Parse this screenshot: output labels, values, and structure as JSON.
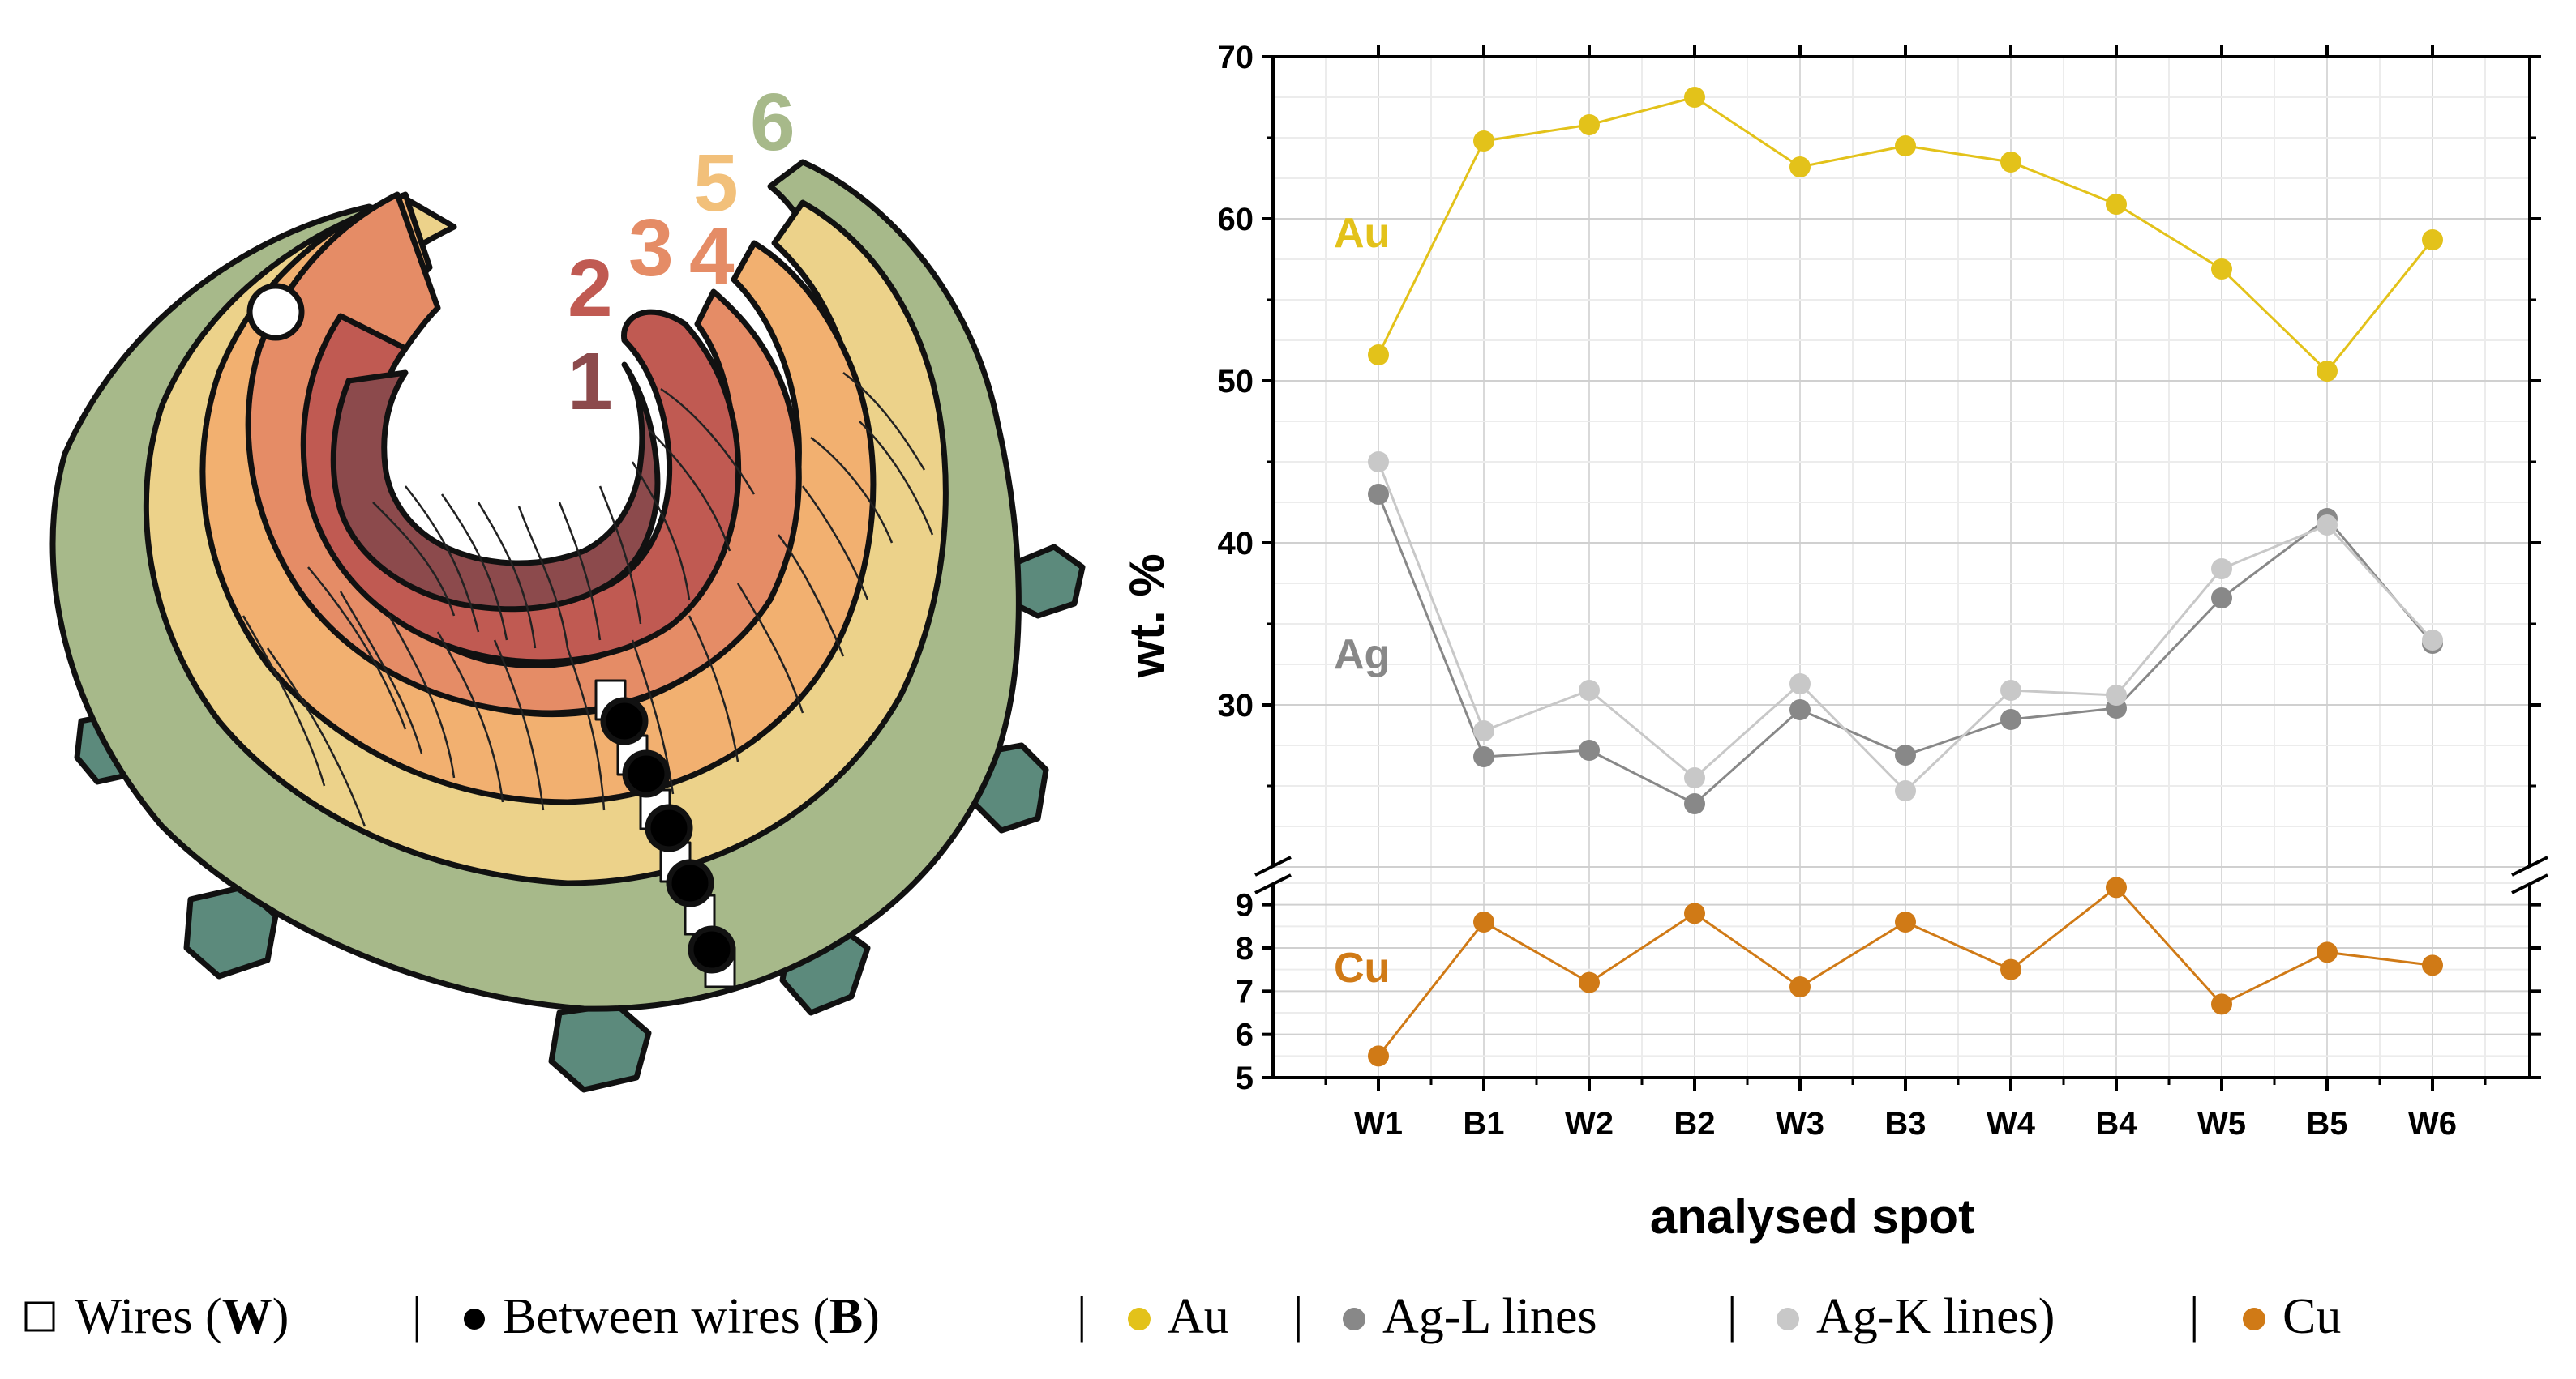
{
  "diagram": {
    "layer_labels": [
      "1",
      "2",
      "3",
      "4",
      "5",
      "6"
    ],
    "layer_colors": [
      "#8c4a4c",
      "#c05a52",
      "#e58c66",
      "#f2b070",
      "#ecd28a",
      "#a7b98a"
    ],
    "bead_color": "#5c8a7c"
  },
  "chart_data": {
    "type": "line",
    "categories": [
      "W1",
      "B1",
      "W2",
      "B2",
      "W3",
      "B3",
      "W4",
      "B4",
      "W5",
      "B5",
      "W6"
    ],
    "xlabel": "analysed spot",
    "ylabel": "wt. %",
    "axis_break": true,
    "upper_panel": {
      "ylim": [
        20,
        70
      ],
      "yticks": [
        "30",
        "40",
        "50",
        "60",
        "70"
      ]
    },
    "lower_panel": {
      "ylim": [
        5,
        9.5
      ],
      "yticks": [
        "5",
        "6",
        "7",
        "8",
        "9"
      ]
    },
    "grid": true,
    "series": [
      {
        "name": "Au",
        "color": "#e3c21a",
        "panel": "upper",
        "values": [
          51.6,
          64.8,
          65.8,
          67.5,
          63.2,
          64.5,
          63.5,
          60.9,
          56.9,
          50.6,
          58.7
        ]
      },
      {
        "name": "Ag",
        "color": "#888888",
        "panel": "upper",
        "values": [
          43.0,
          26.8,
          27.2,
          23.9,
          29.7,
          26.9,
          29.1,
          29.8,
          36.6,
          41.5,
          33.8
        ]
      },
      {
        "name": "",
        "color": "#c8c8c8",
        "panel": "upper",
        "values": [
          45.0,
          28.4,
          30.9,
          25.5,
          31.3,
          24.7,
          30.9,
          30.6,
          38.4,
          41.1,
          34.0
        ]
      },
      {
        "name": "Cu",
        "color": "#d07a16",
        "panel": "lower",
        "values": [
          5.5,
          8.6,
          7.2,
          8.8,
          7.1,
          8.6,
          7.5,
          9.4,
          6.7,
          7.9,
          7.6
        ]
      }
    ]
  },
  "legend": {
    "wires": "Wires (",
    "wires_bold": "W",
    "wires_close": ")",
    "between": "Between wires (",
    "between_bold": "B",
    "between_close": ")",
    "au": "Au",
    "ag_l": "Ag-L lines",
    "ag_k": "Ag-K lines)",
    "cu": "Cu",
    "separator": "|"
  }
}
